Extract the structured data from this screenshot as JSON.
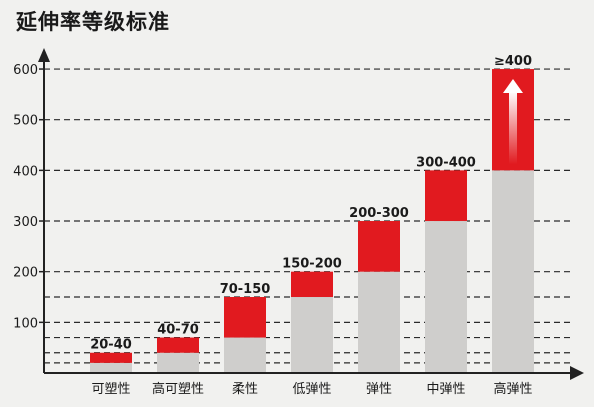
{
  "chart_data": {
    "type": "bar",
    "title": "延伸率等级标准",
    "categories": [
      "可塑性",
      "高可塑性",
      "柔性",
      "低弹性",
      "弹性",
      "中弹性",
      "高弹性"
    ],
    "range_labels": [
      "20-40",
      "40-70",
      "70-150",
      "150-200",
      "200-300",
      "300-400",
      "≥400"
    ],
    "series": [
      {
        "values": [
          20,
          40,
          70,
          150,
          200,
          300,
          400
        ]
      },
      {
        "values": [
          40,
          70,
          150,
          200,
          300,
          400,
          600
        ]
      }
    ],
    "y_ticks": [
      100,
      200,
      300,
      400,
      500,
      600
    ],
    "ylim": [
      0,
      650
    ],
    "dashed_gridlines": [
      20,
      40,
      70,
      100,
      150,
      200,
      300,
      400,
      500,
      600
    ],
    "grid": true,
    "xlabel": "",
    "ylabel": "",
    "arrow_on_last_bar": true,
    "colors": {
      "base": "#cfcecc",
      "top": "#e11a1f",
      "grid": "#2a2a2a",
      "axis": "#222222",
      "text": "#1a1a1a"
    }
  }
}
